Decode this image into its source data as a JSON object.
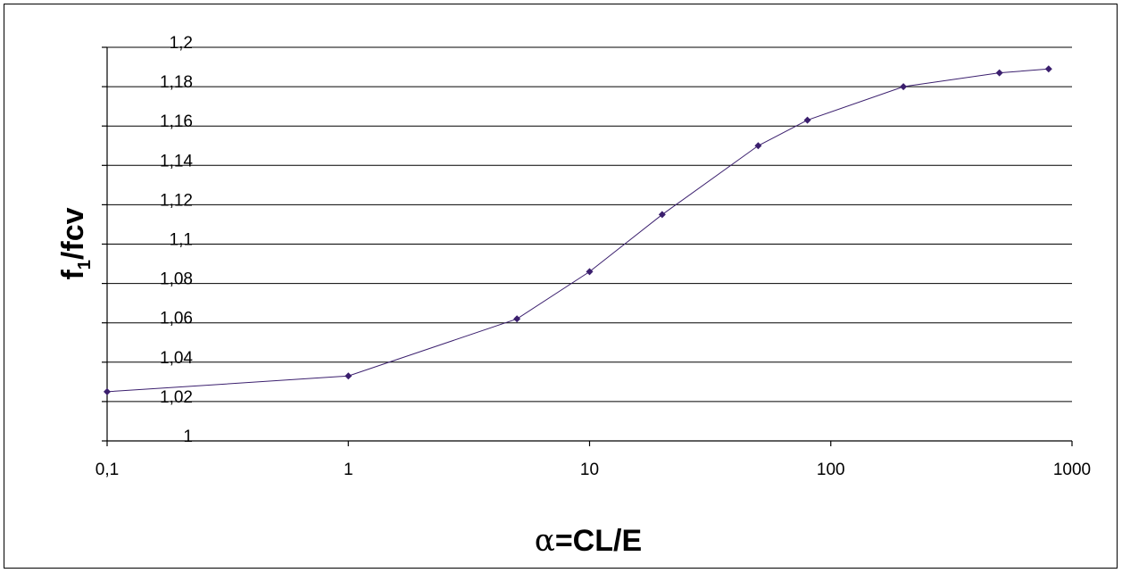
{
  "chart_data": {
    "type": "line",
    "title": "",
    "xlabel_symbol": "α",
    "xlabel_rest": "=CL/E",
    "ylabel_main": "f",
    "ylabel_sub": "1",
    "ylabel_rest": "/fcv",
    "x_scale": "log",
    "xlim": [
      0.1,
      1000
    ],
    "ylim": [
      1,
      1.2
    ],
    "x_ticks": [
      0.1,
      1,
      10,
      100,
      1000
    ],
    "x_tick_labels": [
      "0,1",
      "1",
      "10",
      "100",
      "1000"
    ],
    "y_ticks": [
      1,
      1.02,
      1.04,
      1.06,
      1.08,
      1.1,
      1.12,
      1.14,
      1.16,
      1.18,
      1.2
    ],
    "y_tick_labels": [
      "1",
      "1,02",
      "1,04",
      "1,06",
      "1,08",
      "1,1",
      "1,12",
      "1,14",
      "1,16",
      "1,18",
      "1,2"
    ],
    "grid": "horizontal",
    "legend": "none",
    "line_color": "#3b1f6e",
    "series": [
      {
        "x": [
          0.1,
          1,
          5,
          10,
          20,
          50,
          80,
          200,
          500,
          800
        ],
        "y": [
          1.025,
          1.033,
          1.062,
          1.086,
          1.115,
          1.15,
          1.163,
          1.18,
          1.187,
          1.189
        ]
      }
    ]
  }
}
